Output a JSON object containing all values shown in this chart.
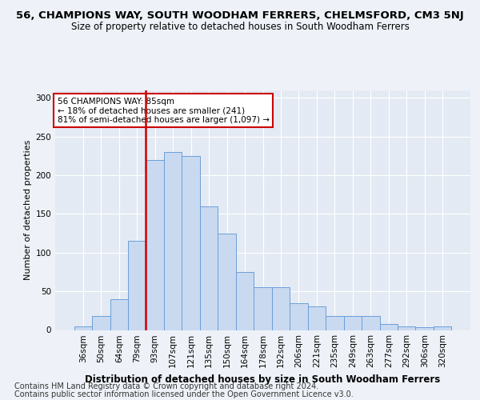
{
  "title": "56, CHAMPIONS WAY, SOUTH WOODHAM FERRERS, CHELMSFORD, CM3 5NJ",
  "subtitle": "Size of property relative to detached houses in South Woodham Ferrers",
  "xlabel": "Distribution of detached houses by size in South Woodham Ferrers",
  "ylabel": "Number of detached properties",
  "categories": [
    "36sqm",
    "50sqm",
    "64sqm",
    "79sqm",
    "93sqm",
    "107sqm",
    "121sqm",
    "135sqm",
    "150sqm",
    "164sqm",
    "178sqm",
    "192sqm",
    "206sqm",
    "221sqm",
    "235sqm",
    "249sqm",
    "263sqm",
    "277sqm",
    "292sqm",
    "306sqm",
    "320sqm"
  ],
  "values": [
    5,
    18,
    40,
    115,
    220,
    230,
    225,
    160,
    125,
    75,
    55,
    55,
    35,
    30,
    18,
    18,
    18,
    8,
    5,
    4,
    5
  ],
  "bar_color": "#c9d9f0",
  "bar_edge_color": "#6a9fd8",
  "vline_x_index": 4,
  "vline_color": "#cc0000",
  "annotation_text": "56 CHAMPIONS WAY: 85sqm\n← 18% of detached houses are smaller (241)\n81% of semi-detached houses are larger (1,097) →",
  "annotation_box_color": "#ffffff",
  "annotation_box_edge": "#cc0000",
  "ylim": [
    0,
    310
  ],
  "yticks": [
    0,
    50,
    100,
    150,
    200,
    250,
    300
  ],
  "footer1": "Contains HM Land Registry data © Crown copyright and database right 2024.",
  "footer2": "Contains public sector information licensed under the Open Government Licence v3.0.",
  "bg_color": "#eef2f8",
  "plot_bg_color": "#e4eaf4",
  "title_fontsize": 9.5,
  "subtitle_fontsize": 8.5,
  "xlabel_fontsize": 8.5,
  "ylabel_fontsize": 8,
  "tick_fontsize": 7.5,
  "footer_fontsize": 7,
  "annotation_fontsize": 7.5
}
